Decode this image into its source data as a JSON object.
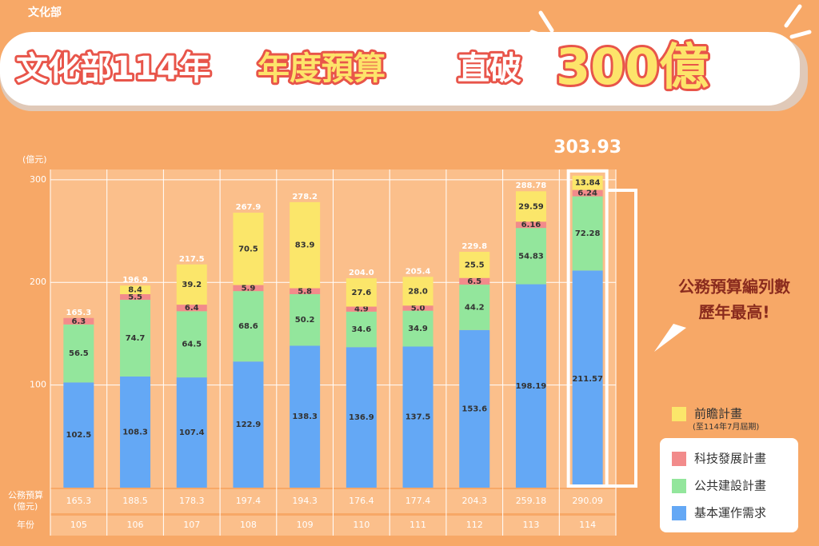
{
  "logo": "文化部",
  "chart_data": {
    "type": "stacked-bar",
    "title": [
      "文化部114年",
      "年度預算",
      "直破",
      "300億"
    ],
    "y_unit": "(億元)",
    "categories": [
      "105",
      "106",
      "107",
      "108",
      "109",
      "110",
      "111",
      "112",
      "113",
      "114"
    ],
    "series": [
      {
        "name": "基本運作需求",
        "color": "#64a8f5",
        "values": [
          102.5,
          108.3,
          107.4,
          122.9,
          138.3,
          136.9,
          137.5,
          153.6,
          198.19,
          211.57
        ]
      },
      {
        "name": "公共建設計畫",
        "color": "#93e69c",
        "values": [
          56.5,
          74.7,
          64.5,
          68.6,
          50.2,
          34.6,
          34.9,
          44.2,
          54.83,
          72.28
        ]
      },
      {
        "name": "科技發展計畫",
        "color": "#f28b8b",
        "values": [
          6.3,
          5.5,
          6.4,
          5.9,
          5.8,
          4.9,
          5.0,
          6.5,
          6.16,
          6.24
        ],
        "value_labels": [
          "6.3",
          "5.5",
          "6.4",
          "5.9",
          "5.8",
          "4.9",
          "5.0",
          "6.5",
          "6.16",
          "6.24"
        ]
      },
      {
        "name": "前瞻計畫",
        "note": "(至114年7月屆期)",
        "color": "#fbe66a",
        "values": [
          null,
          8.4,
          39.2,
          70.5,
          83.9,
          27.6,
          28.0,
          25.5,
          29.59,
          13.84
        ],
        "value_labels": [
          null,
          "8.4",
          "39.2",
          "70.5",
          "83.9",
          "27.6",
          "28.0",
          "25.5",
          "29.59",
          "13.84"
        ]
      }
    ],
    "totals": [
      165.3,
      196.9,
      217.5,
      267.9,
      278.2,
      204.0,
      205.4,
      229.8,
      288.78,
      303.93
    ],
    "total_labels": [
      "165.3",
      "196.9",
      "217.5",
      "267.9",
      "278.2",
      "204.0",
      "205.4",
      "229.8",
      "288.78",
      "303.93"
    ],
    "ylim": [
      0,
      310
    ],
    "yticks": [
      100,
      200,
      300
    ],
    "grid": true,
    "budget_row": {
      "label": [
        "公務預算",
        "(億元)"
      ],
      "values": [
        165.3,
        188.5,
        178.3,
        197.4,
        194.3,
        176.4,
        177.4,
        204.3,
        259.18,
        290.09
      ]
    },
    "year_row_label": "年份",
    "annotation": [
      "公務預算編列數",
      "歷年最高!"
    ]
  }
}
